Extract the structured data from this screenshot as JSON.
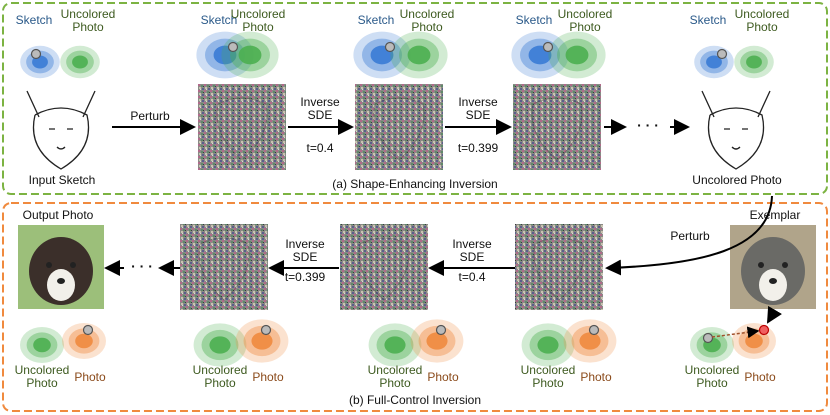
{
  "top": {
    "caption": "(a) Shape-Enhancing Inversion",
    "input_label": "Input Sketch",
    "output_label": "Uncolored Photo",
    "steps": [
      {
        "label": "Perturb"
      },
      {
        "label": "Inverse SDE",
        "t": "t=0.4"
      },
      {
        "label": "Inverse SDE",
        "t": "t=0.399"
      }
    ],
    "ellipsis": "· · ·",
    "distributions": [
      {
        "left": "Sketch",
        "right": "Uncolored Photo"
      },
      {
        "left": "Sketch",
        "right": "Uncolored Photo"
      },
      {
        "left": "Sketch",
        "right": "Uncolored Photo"
      },
      {
        "left": "Sketch",
        "right": "Uncolored Photo"
      },
      {
        "left": "Sketch",
        "right": "Uncolored Photo"
      }
    ]
  },
  "bottom": {
    "caption": "(b) Full-Control Inversion",
    "output_label": "Output Photo",
    "exemplar_label": "Exemplar",
    "steps": [
      {
        "label": "Perturb"
      },
      {
        "label": "Inverse SDE",
        "t": "t=0.4"
      },
      {
        "label": "Inverse SDE",
        "t": "t=0.399"
      }
    ],
    "ellipsis": "· · ·",
    "distributions": [
      {
        "left": "Uncolored Photo",
        "right": "Photo"
      },
      {
        "left": "Uncolored Photo",
        "right": "Photo"
      },
      {
        "left": "Uncolored Photo",
        "right": "Photo"
      },
      {
        "left": "Uncolored Photo",
        "right": "Photo"
      },
      {
        "left": "Uncolored Photo",
        "right": "Photo"
      }
    ]
  }
}
